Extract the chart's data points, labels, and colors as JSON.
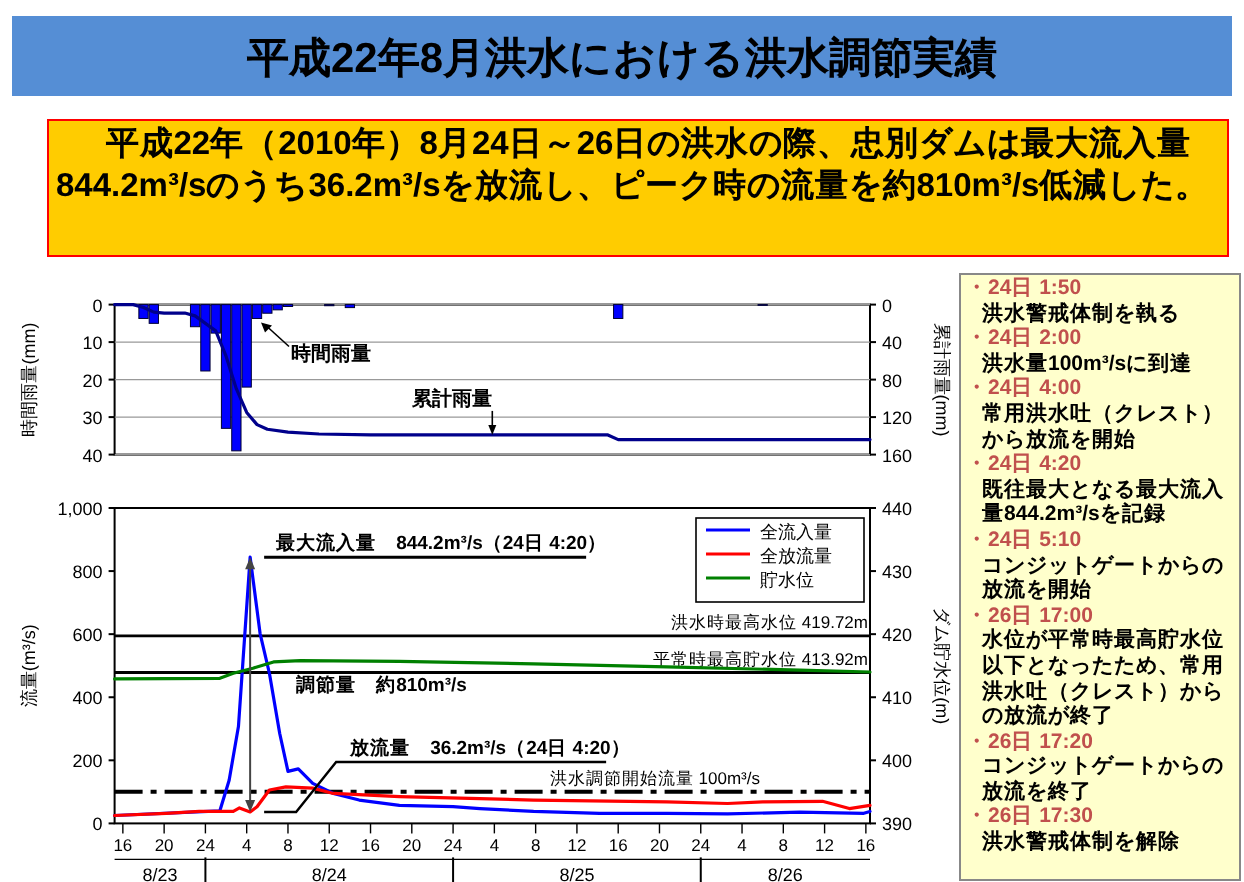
{
  "chart_data": [
    {
      "type": "bar",
      "title": "平成22年8月洪水における洪水調節実績",
      "subtitle": "平成22年（2010年）8月24日～26日の洪水の際、忠別ダムは最大流入量844.2m³/sのうち36.2m³/sを放流し、ピーク時の流量を約810m³/s低減した。",
      "ylabel": "時間雨量(mm)",
      "y2label": "累計雨量(mm)",
      "xlim": [
        "2010-08-23T15:12",
        "2010-08-26T16:24"
      ],
      "ylim": [
        40,
        0
      ],
      "yticks": [
        0,
        10,
        20,
        30,
        40
      ],
      "y2lim": [
        160,
        0
      ],
      "y2ticks": [
        0,
        40,
        80,
        120,
        160
      ],
      "tick_labels": "y",
      "grid": "y",
      "series": [
        {
          "name": "時間雨量",
          "type": "bar",
          "color": "#0000ff",
          "x": [
            "2010-08-23T18:00",
            "2010-08-23T19:00",
            "2010-08-23T23:00",
            "2010-08-24T00:00",
            "2010-08-24T01:00",
            "2010-08-24T02:00",
            "2010-08-24T03:00",
            "2010-08-24T04:00",
            "2010-08-24T05:00",
            "2010-08-24T06:00",
            "2010-08-24T07:00",
            "2010-08-24T08:00",
            "2010-08-24T12:00",
            "2010-08-24T14:00",
            "2010-08-25T16:00",
            "2010-08-26T06:00"
          ],
          "values": [
            3.7,
            5,
            5.9,
            17.7,
            7.6,
            33,
            39,
            22,
            3.7,
            2.3,
            1.4,
            0.5,
            0.3,
            0.8,
            3.7,
            0.2
          ]
        },
        {
          "name": "累計雨量",
          "type": "line",
          "axis": "y2",
          "color": "#00008b",
          "x": [
            "2010-08-23T15:12",
            "2010-08-23T17:00",
            "2010-08-23T18:00",
            "2010-08-23T19:00",
            "2010-08-23T20:00",
            "2010-08-23T22:00",
            "2010-08-23T23:00",
            "2010-08-24T00:00",
            "2010-08-24T01:00",
            "2010-08-24T02:00",
            "2010-08-24T03:00",
            "2010-08-24T04:00",
            "2010-08-24T05:00",
            "2010-08-24T06:00",
            "2010-08-24T08:00",
            "2010-08-24T11:00",
            "2010-08-24T16:00",
            "2010-08-25T15:00",
            "2010-08-25T16:00",
            "2010-08-26T16:24"
          ],
          "values": [
            0,
            0,
            3,
            8,
            9,
            9,
            12,
            20,
            28,
            55,
            90,
            115,
            128,
            133,
            136,
            138,
            139,
            139,
            144,
            144
          ]
        }
      ]
    },
    {
      "type": "line",
      "ylabel": "流量(m³/s)",
      "y2label": "ダム貯水位(m)",
      "xlim": [
        "2010-08-23T15:12",
        "2010-08-26T16:24"
      ],
      "xticks": [
        {
          "value": "2010-08-23T16:00",
          "label": "16"
        },
        {
          "value": "2010-08-23T20:00",
          "label": "20"
        },
        {
          "value": "2010-08-24T00:00",
          "label": "24"
        },
        {
          "value": "2010-08-24T04:00",
          "label": "4"
        },
        {
          "value": "2010-08-24T08:00",
          "label": "8"
        },
        {
          "value": "2010-08-24T12:00",
          "label": "12"
        },
        {
          "value": "2010-08-24T16:00",
          "label": "16"
        },
        {
          "value": "2010-08-24T20:00",
          "label": "20"
        },
        {
          "value": "2010-08-25T00:00",
          "label": "24"
        },
        {
          "value": "2010-08-25T04:00",
          "label": "4"
        },
        {
          "value": "2010-08-25T08:00",
          "label": "8"
        },
        {
          "value": "2010-08-25T12:00",
          "label": "12"
        },
        {
          "value": "2010-08-25T16:00",
          "label": "16"
        },
        {
          "value": "2010-08-25T20:00",
          "label": "20"
        },
        {
          "value": "2010-08-26T00:00",
          "label": "24"
        },
        {
          "value": "2010-08-26T04:00",
          "label": "4"
        },
        {
          "value": "2010-08-26T08:00",
          "label": "8"
        },
        {
          "value": "2010-08-26T12:00",
          "label": "12"
        },
        {
          "value": "2010-08-26T16:00",
          "label": "16"
        }
      ],
      "ylim": [
        0,
        1000
      ],
      "yticks": [
        0,
        200,
        400,
        600,
        800,
        {
          "value": 1000,
          "label": "1,000"
        }
      ],
      "y2lim": [
        390,
        440
      ],
      "y2ticks": [
        390,
        400,
        410,
        420,
        430,
        440
      ],
      "legend": "top right",
      "series": [
        {
          "name": "全流入量",
          "color": "#0000ff",
          "x": [
            "2010-08-23T15:12",
            "2010-08-24T01:24",
            "2010-08-24T02:18",
            "2010-08-24T03:12",
            "2010-08-24T04:20",
            "2010-08-24T05:18",
            "2010-08-24T06:12",
            "2010-08-24T07:12",
            "2010-08-24T08:00",
            "2010-08-24T09:00",
            "2010-08-24T10:24",
            "2010-08-24T12:24",
            "2010-08-24T14:54",
            "2010-08-24T18:48",
            "2010-08-25T00:00",
            "2010-08-25T02:36",
            "2010-08-25T07:48",
            "2010-08-25T14:12",
            "2010-08-25T20:42",
            "2010-08-26T02:36",
            "2010-08-26T09:36",
            "2010-08-26T15:48",
            "2010-08-26T16:24"
          ],
          "values": [
            25,
            40,
            137,
            307,
            844.2,
            602,
            476,
            285,
            165,
            173,
            127,
            95,
            74,
            57,
            53,
            47,
            38,
            32,
            32,
            30,
            36,
            32,
            38
          ]
        },
        {
          "name": "全放流量",
          "color": "#ff0000",
          "x": [
            "2010-08-23T15:12",
            "2010-08-23T20:12",
            "2010-08-23T23:24",
            "2010-08-24T02:42",
            "2010-08-24T03:18",
            "2010-08-24T04:20",
            "2010-08-24T05:00",
            "2010-08-24T06:12",
            "2010-08-24T07:48",
            "2010-08-24T10:24",
            "2010-08-24T12:24",
            "2010-08-24T18:48",
            "2010-08-25T07:48",
            "2010-08-25T20:42",
            "2010-08-26T02:36",
            "2010-08-26T06:00",
            "2010-08-26T11:48",
            "2010-08-26T14:24",
            "2010-08-26T16:24"
          ],
          "values": [
            25,
            32,
            38,
            38,
            49,
            36.2,
            53,
            106,
            116,
            112,
            95,
            85,
            74,
            68,
            63,
            68,
            70,
            47,
            57
          ]
        },
        {
          "name": "貯水位",
          "color": "#008000",
          "axis": "y2",
          "x": [
            "2010-08-23T15:12",
            "2010-08-24T01:24",
            "2010-08-24T02:42",
            "2010-08-24T04:36",
            "2010-08-24T06:36",
            "2010-08-24T09:12",
            "2010-08-24T18:48",
            "2010-08-25T07:48",
            "2010-08-25T20:42",
            "2010-08-26T09:36",
            "2010-08-26T16:24"
          ],
          "values": [
            412.9,
            413.0,
            413.8,
            414.6,
            415.6,
            415.8,
            415.7,
            415.3,
            414.8,
            414.3,
            414.0
          ]
        }
      ],
      "ref_lines": [
        {
          "axis": "y2",
          "value": 419.72,
          "label": "洪水時最高水位 419.72m",
          "color": "#000000"
        },
        {
          "axis": "y2",
          "value": 413.92,
          "label": "平常時最高貯水位 413.92m",
          "color": "#000000"
        },
        {
          "axis": "y",
          "value": 100,
          "label": "洪水調節開始流量 100m³/s",
          "color": "#000000",
          "line_style": "dashed"
        }
      ],
      "annotations": [
        {
          "text": "最大流入量　844.2m³/s（24日 4:20）",
          "x": "2010-08-24T04:20",
          "y": 844.2
        },
        {
          "text": "調節量　約810m³/s",
          "x": "2010-08-24T04:20",
          "y": 440
        },
        {
          "text": "放流量　36.2m³/s（24日 4:20）",
          "x": "2010-08-24T04:20",
          "y": 36.2
        },
        "8/23",
        "8/24",
        "8/25",
        "8/26"
      ]
    },
    {
      "type": "other",
      "annotations": [
        "・24日 1:50",
        "洪水警戒体制を執る",
        "・24日 2:00",
        "洪水量100m³/sに到達",
        "・24日 4:00",
        "常用洪水吐（クレスト）から放流を開始",
        "・24日 4:20",
        "既往最大となる最大流入量844.2m³/sを記録",
        "・24日 5:10",
        "コンジットゲートからの放流を開始",
        "・26日 17:00",
        "水位が平常時最高貯水位以下となったため、常用洪水吐（クレスト）からの放流が終了",
        "・26日 17:20",
        "コンジットゲートからの放流を終了",
        "・26日 17:30",
        "洪水警戒体制を解除"
      ]
    }
  ]
}
